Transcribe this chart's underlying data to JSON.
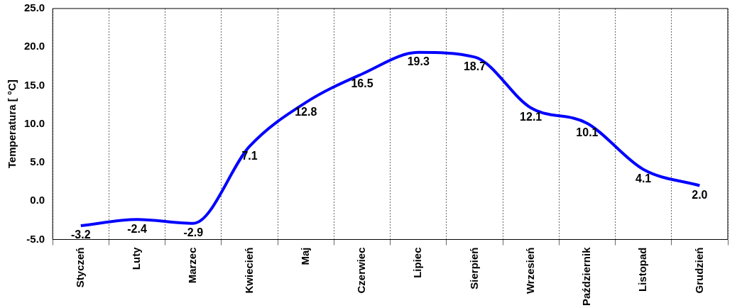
{
  "chart_data": {
    "type": "line",
    "ylabel": "Temperatura [ °C]",
    "categories": [
      "Styczeń",
      "Luty",
      "Marzec",
      "Kwiecień",
      "Maj",
      "Czerwiec",
      "Lipiec",
      "Sierpień",
      "Wrzesień",
      "Październik",
      "Listopad",
      "Grudzień"
    ],
    "series": [
      {
        "color": "#0000ff",
        "values": [
          -3.2,
          -2.4,
          -2.9,
          7.1,
          12.8,
          16.5,
          19.3,
          18.7,
          12.1,
          10.1,
          4.1,
          2.0
        ],
        "value_labels": [
          "-3.2",
          "-2.4",
          "-2.9",
          "7.1",
          "12.8",
          "16.5",
          "19.3",
          "18.7",
          "12.1",
          "10.1",
          "4.1",
          "2.0"
        ]
      }
    ],
    "ylim": [
      -5,
      25
    ],
    "yticks": [
      {
        "value": -5,
        "label": "-5.0"
      },
      {
        "value": 0,
        "label": "0.0"
      },
      {
        "value": 5,
        "label": "5.0"
      },
      {
        "value": 10,
        "label": "10.0"
      },
      {
        "value": 15,
        "label": "15.0"
      },
      {
        "value": 20,
        "label": "20.0"
      },
      {
        "value": 25,
        "label": "25.0"
      }
    ],
    "grid": "x",
    "legend": false,
    "marker": "none",
    "line_style": "solid"
  }
}
